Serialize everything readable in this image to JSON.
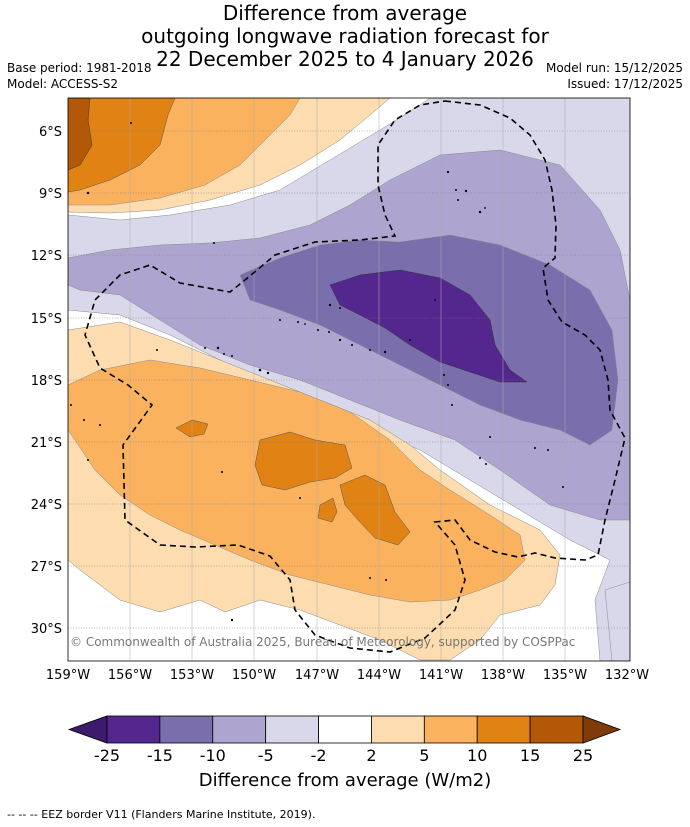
{
  "title": {
    "line1": "Difference from average",
    "line2": "outgoing longwave radiation forecast for",
    "line3": "22 December 2025 to 4 January 2026"
  },
  "meta": {
    "base_period": "Base period: 1981-2018",
    "model": "Model: ACCESS-S2",
    "model_run": "Model run: 15/12/2025",
    "issued": "Issued: 17/12/2025"
  },
  "lat_labels": [
    "6°S",
    "9°S",
    "12°S",
    "15°S",
    "18°S",
    "21°S",
    "24°S",
    "27°S",
    "30°S"
  ],
  "lon_labels": [
    "159°W",
    "156°W",
    "153°W",
    "150°W",
    "147°W",
    "144°W",
    "141°W",
    "138°W",
    "135°W",
    "132°W"
  ],
  "copyright": "© Commonwealth of Australia 2025, Bureau of Meteorology, supported by COSPPac",
  "colorbar": {
    "ticks": [
      "-25",
      "-15",
      "-10",
      "-5",
      "-2",
      "2",
      "5",
      "10",
      "15",
      "25"
    ],
    "colors": [
      "#3d1a6b",
      "#54278f",
      "#7b6eac",
      "#ada5d0",
      "#d9d8ea",
      "#ffffff",
      "#fddcb0",
      "#fbb25e",
      "#e08214",
      "#b35806",
      "#7f3b08"
    ],
    "title": "Difference from average (W/m2)"
  },
  "legend": "--  --  -- EEZ border V11 (Flanders Marine Institute, 2019)."
}
